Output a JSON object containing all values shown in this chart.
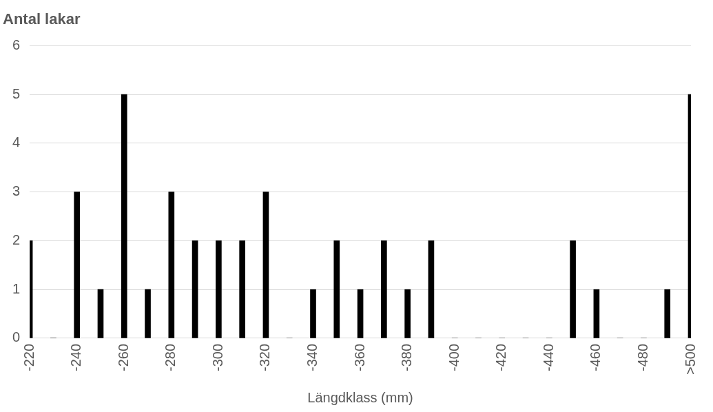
{
  "chart_data": {
    "type": "bar",
    "title": "Antal lakar",
    "xlabel": "Längdklass (mm)",
    "categories": [
      "-220",
      null,
      "-240",
      null,
      "-260",
      null,
      "-280",
      null,
      "-300",
      null,
      "-320",
      null,
      "-340",
      null,
      "-360",
      null,
      "-380",
      null,
      "-400",
      null,
      "-420",
      null,
      "-440",
      null,
      "-460",
      null,
      "-480",
      null,
      ">500"
    ],
    "values": [
      2,
      0,
      3,
      1,
      5,
      1,
      3,
      2,
      2,
      2,
      3,
      0,
      1,
      2,
      1,
      2,
      1,
      2,
      0,
      0,
      0,
      0,
      0,
      2,
      1,
      0,
      0,
      1,
      5
    ],
    "color": "#000000",
    "ylim": [
      0,
      6
    ],
    "yticks": [
      0,
      1,
      2,
      3,
      4,
      5,
      6
    ],
    "grid": "y"
  }
}
